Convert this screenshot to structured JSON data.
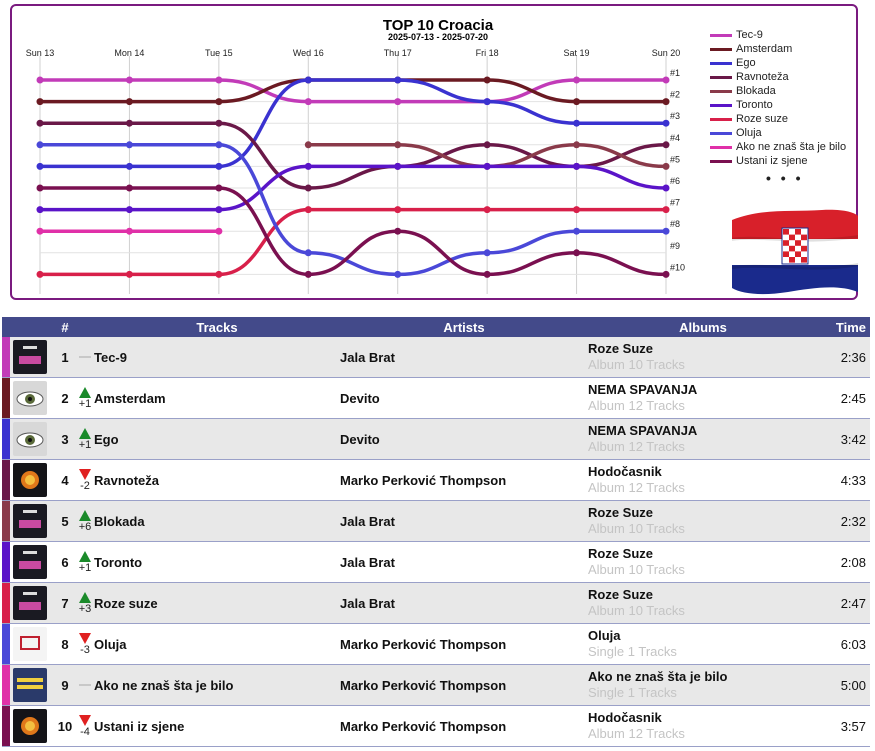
{
  "chart_data": {
    "type": "line",
    "title": "TOP 10 Croacia",
    "subtitle": "2025-07-13 - 2025-07-20",
    "x": [
      "Sun 13",
      "Mon 14",
      "Tue 15",
      "Wed 16",
      "Thu 17",
      "Fri 18",
      "Sat 19",
      "Sun 20"
    ],
    "ylabel": "",
    "y_reversed": true,
    "ylim": [
      1,
      10
    ],
    "rank_labels": [
      "#1",
      "#2",
      "#3",
      "#4",
      "#5",
      "#6",
      "#7",
      "#8",
      "#9",
      "#10"
    ],
    "series": [
      {
        "name": "Tec-9",
        "color": "#c23bb8",
        "values": [
          1,
          1,
          1,
          2,
          2,
          2,
          1,
          1
        ]
      },
      {
        "name": "Amsterdam",
        "color": "#6b1a22",
        "values": [
          2,
          2,
          2,
          1,
          1,
          1,
          2,
          2
        ]
      },
      {
        "name": "Ego",
        "color": "#3a32d0",
        "values": [
          5,
          5,
          5,
          1,
          1,
          2,
          3,
          3
        ]
      },
      {
        "name": "Ravnoteža",
        "color": "#6a1848",
        "values": [
          3,
          3,
          3,
          6,
          5,
          4,
          5,
          4
        ]
      },
      {
        "name": "Blokada",
        "color": "#8a3a4a",
        "values": [
          null,
          null,
          null,
          4,
          4,
          5,
          4,
          5
        ]
      },
      {
        "name": "Toronto",
        "color": "#5a14c8",
        "values": [
          7,
          7,
          7,
          5,
          5,
          5,
          5,
          6
        ]
      },
      {
        "name": "Roze suze",
        "color": "#d8204a",
        "values": [
          10,
          10,
          10,
          7,
          7,
          7,
          7,
          7
        ]
      },
      {
        "name": "Oluja",
        "color": "#4a48d8",
        "values": [
          4,
          4,
          4,
          9,
          10,
          9,
          8,
          8
        ]
      },
      {
        "name": "Ako ne znaš šta je bilo",
        "color": "#e030a8",
        "values": [
          8,
          8,
          8,
          null,
          null,
          null,
          null,
          null
        ]
      },
      {
        "name": "Ustani iz sjene",
        "color": "#7a1050",
        "values": [
          6,
          6,
          6,
          10,
          8,
          10,
          9,
          10
        ]
      }
    ],
    "legend_more": "• • •"
  },
  "table": {
    "headers": {
      "rank": "#",
      "tracks": "Tracks",
      "artists": "Artists",
      "albums": "Albums",
      "time": "Time"
    },
    "rows": [
      {
        "rank": "1",
        "trend": "none",
        "change": "",
        "track": "Tec-9",
        "artist": "Jala Brat",
        "album": "Roze Suze",
        "album_sub": "Album 10 Tracks",
        "time": "2:36",
        "color": "#c23bb8",
        "cover": "rs"
      },
      {
        "rank": "2",
        "trend": "up",
        "change": "+1",
        "track": "Amsterdam",
        "artist": "Devito",
        "album": "NEMA SPAVANJA",
        "album_sub": "Album 12 Tracks",
        "time": "2:45",
        "color": "#6b1a22",
        "cover": "eye"
      },
      {
        "rank": "3",
        "trend": "up",
        "change": "+1",
        "track": "Ego",
        "artist": "Devito",
        "album": "NEMA SPAVANJA",
        "album_sub": "Album 12 Tracks",
        "time": "3:42",
        "color": "#3a32d0",
        "cover": "eye"
      },
      {
        "rank": "4",
        "trend": "down",
        "change": "-2",
        "track": "Ravnoteža",
        "artist": "Marko Perković Thompson",
        "album": "Hodočasnik",
        "album_sub": "Album 12 Tracks",
        "time": "4:33",
        "color": "#6a1848",
        "cover": "fire"
      },
      {
        "rank": "5",
        "trend": "up",
        "change": "+6",
        "track": "Blokada",
        "artist": "Jala Brat",
        "album": "Roze Suze",
        "album_sub": "Album 10 Tracks",
        "time": "2:32",
        "color": "#8a3a4a",
        "cover": "rs"
      },
      {
        "rank": "6",
        "trend": "up",
        "change": "+1",
        "track": "Toronto",
        "artist": "Jala Brat",
        "album": "Roze Suze",
        "album_sub": "Album 10 Tracks",
        "time": "2:08",
        "color": "#5a14c8",
        "cover": "rs"
      },
      {
        "rank": "7",
        "trend": "up",
        "change": "+3",
        "track": "Roze suze",
        "artist": "Jala Brat",
        "album": "Roze Suze",
        "album_sub": "Album 10 Tracks",
        "time": "2:47",
        "color": "#d8204a",
        "cover": "rs"
      },
      {
        "rank": "8",
        "trend": "down",
        "change": "-3",
        "track": "Oluja",
        "artist": "Marko Perković Thompson",
        "album": "Oluja",
        "album_sub": "Single 1 Tracks",
        "time": "6:03",
        "color": "#4a48d8",
        "cover": "oluja"
      },
      {
        "rank": "9",
        "trend": "none",
        "change": "",
        "track": "Ako ne znaš šta je bilo",
        "artist": "Marko Perković Thompson",
        "album": "Ako ne znaš šta je bilo",
        "album_sub": "Single 1 Tracks",
        "time": "5:00",
        "color": "#e030a8",
        "cover": "ako"
      },
      {
        "rank": "10",
        "trend": "down",
        "change": "-4",
        "track": "Ustani iz sjene",
        "artist": "Marko Perković Thompson",
        "album": "Hodočasnik",
        "album_sub": "Album 12 Tracks",
        "time": "3:57",
        "color": "#7a1050",
        "cover": "fire"
      }
    ]
  },
  "flag": {
    "colors": [
      "#d8202a",
      "#ffffff",
      "#1a2a8c"
    ]
  }
}
